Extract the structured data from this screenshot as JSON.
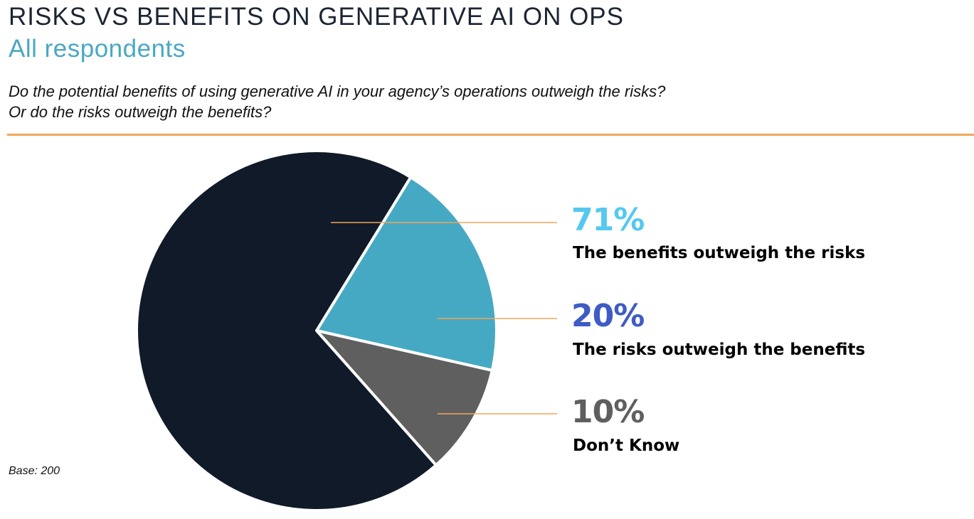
{
  "header": {
    "title": "RISKS VS BENEFITS ON GENERATIVE AI ON OPS",
    "subtitle": "All respondents",
    "question_line1": "Do the potential benefits of using generative AI in your agency’s operations outweigh the risks?",
    "question_line2": "Or do the risks outweigh the benefits?"
  },
  "footer": {
    "base": "Base: 200"
  },
  "colors": {
    "accent_rule": "#f0a95a",
    "leader_line": "#f2a65a"
  },
  "chart_data": {
    "type": "pie",
    "title": "RISKS VS BENEFITS ON GENERATIVE AI ON OPS",
    "subtitle": "All respondents",
    "legend": "right",
    "slices": [
      {
        "label": "The benefits outweigh the risks",
        "value": 71,
        "value_label": "71%",
        "color": "#101a29",
        "label_color": "#55c8ef"
      },
      {
        "label": "The risks outweigh the benefits",
        "value": 20,
        "value_label": "20%",
        "color": "#46a9c4",
        "label_color": "#3f5bc4"
      },
      {
        "label": "Don’t Know",
        "value": 10,
        "value_label": "10%",
        "color": "#5f5f5f",
        "label_color": "#5f5f5f"
      }
    ]
  }
}
